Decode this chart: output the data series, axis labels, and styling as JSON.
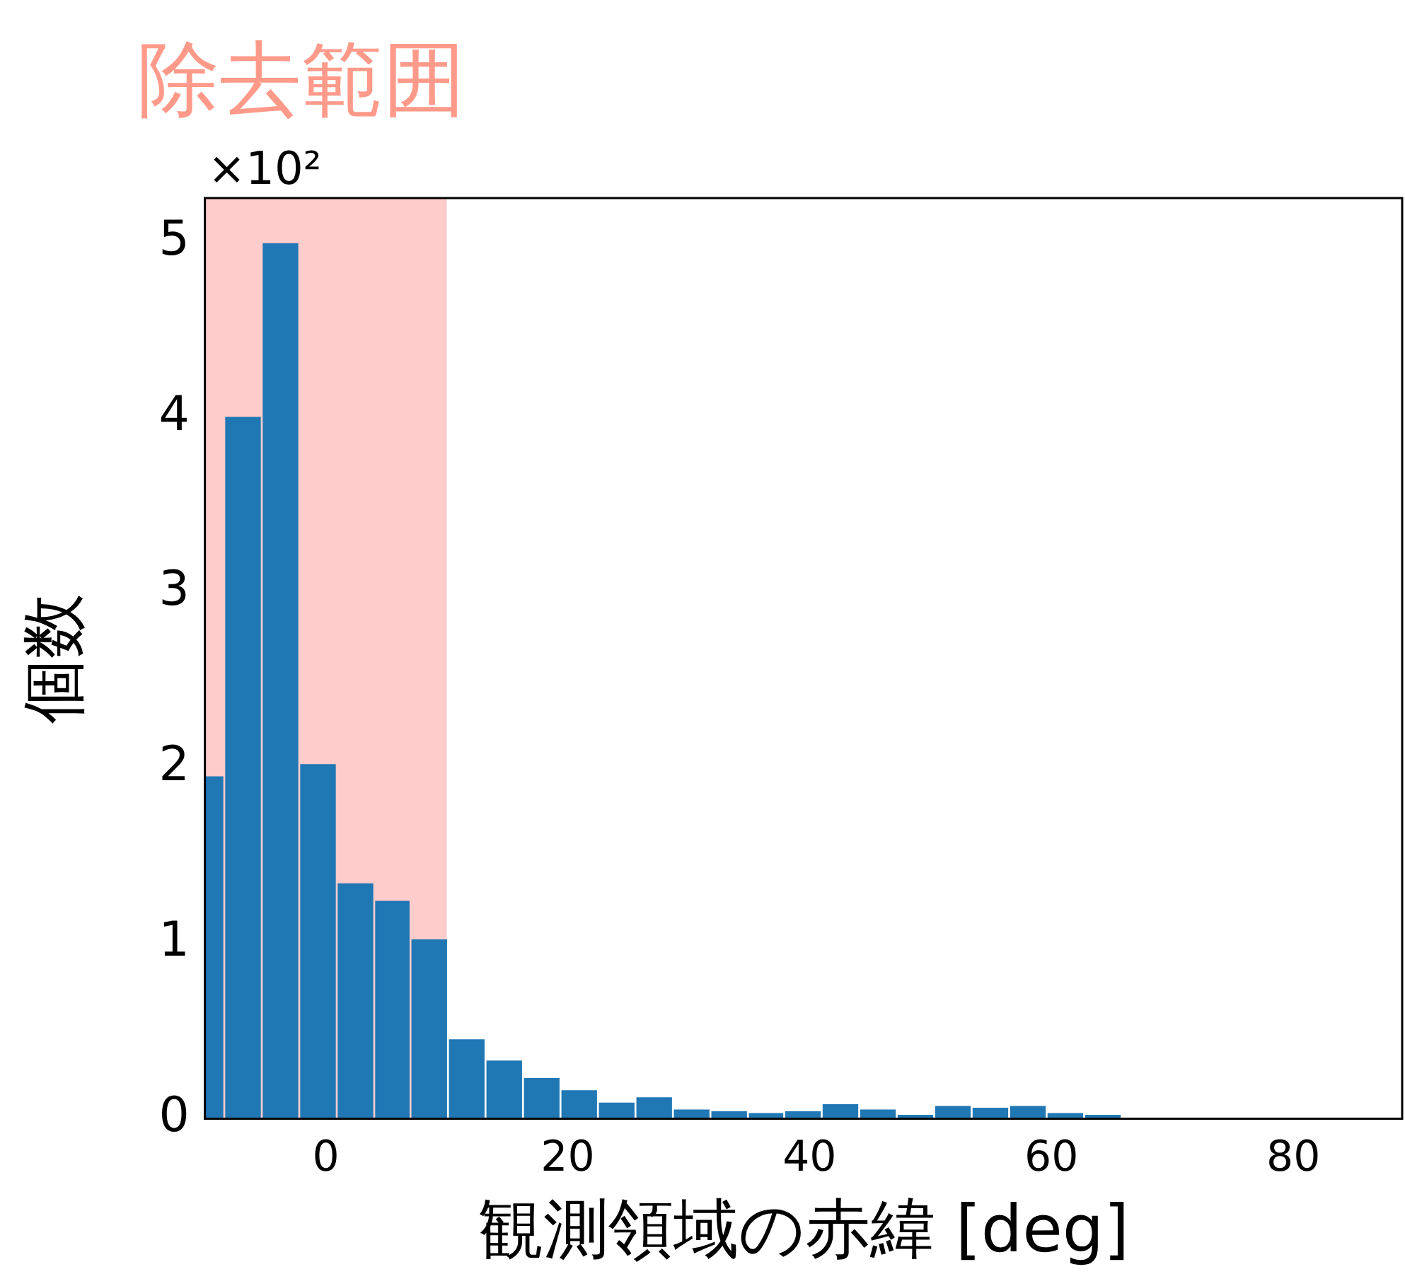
{
  "chart_data": {
    "type": "histogram",
    "xlabel": "観測領域の赤緯 [deg]",
    "ylabel": "個数",
    "bins": [
      -10,
      -8.4,
      -5.3,
      -2.2,
      0.9,
      4.0,
      7.0,
      10.1,
      13.2,
      16.3,
      19.4,
      22.5,
      25.6,
      28.7,
      31.8,
      34.9,
      37.9,
      41.0,
      44.1,
      47.2,
      50.3,
      53.4,
      56.5,
      59.6,
      62.7,
      65.8
    ],
    "values": [
      1.95,
      4.0,
      4.99,
      2.02,
      1.34,
      1.24,
      1.02,
      0.45,
      0.33,
      0.23,
      0.16,
      0.09,
      0.12,
      0.05,
      0.04,
      0.03,
      0.04,
      0.08,
      0.05,
      0.02,
      0.07,
      0.06,
      0.07,
      0.03,
      0.02
    ],
    "color": "#1f77b4",
    "xlim": [
      -10,
      89
    ],
    "xticks": [
      0,
      20,
      40,
      60,
      80
    ],
    "ylim": [
      0,
      5.25
    ],
    "yticks": [
      0,
      1,
      2,
      3,
      4,
      5
    ],
    "bands": [
      {
        "axis": "x",
        "from": -10,
        "to": 10,
        "label": "除去範囲",
        "color": "#ffcccc"
      }
    ],
    "annotations": [
      "×10²"
    ],
    "grid": false,
    "legend": false
  }
}
